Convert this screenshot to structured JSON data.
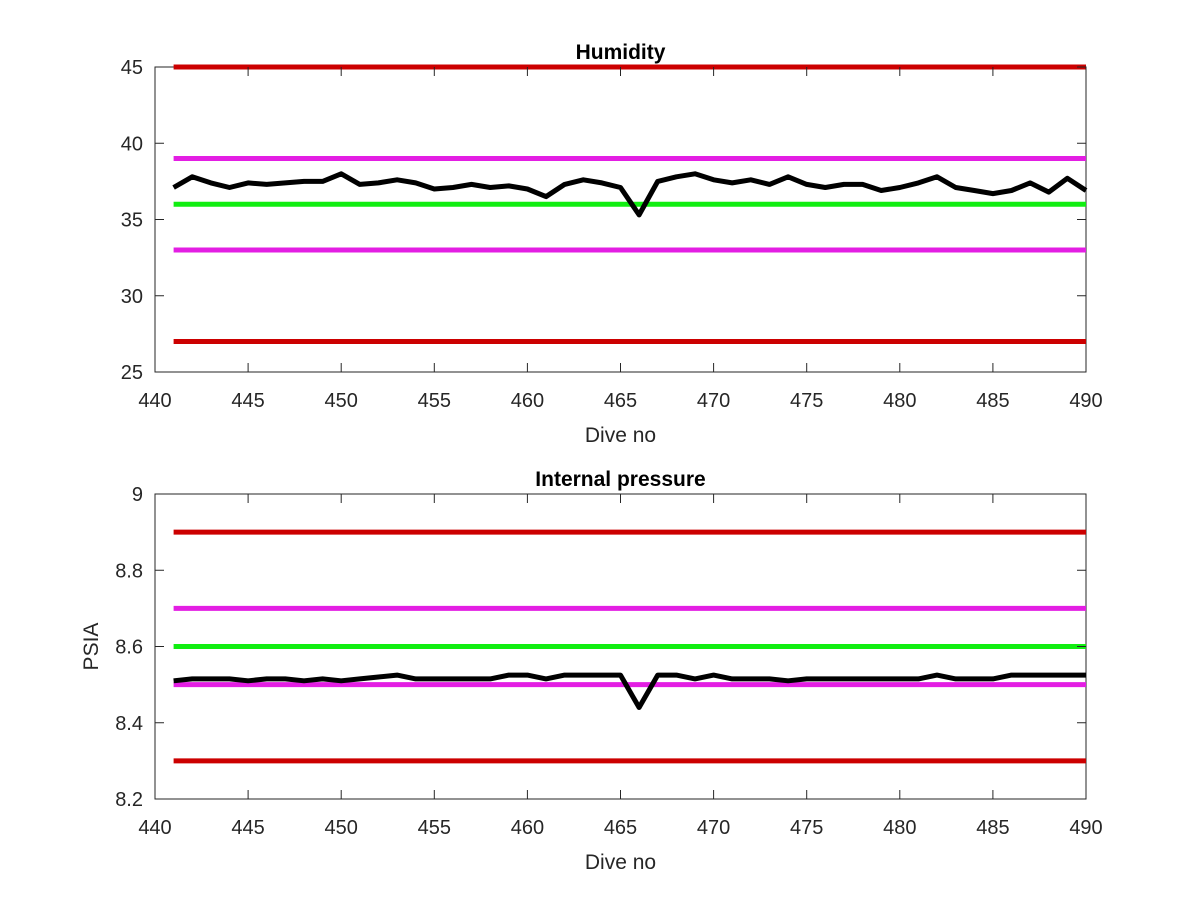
{
  "colors": {
    "critical": "#cc0000",
    "warning": "#e31ee3",
    "nominal": "#11ee11",
    "data": "#000000",
    "axis": "#262626"
  },
  "chart_data": [
    {
      "type": "line",
      "title": "Humidity",
      "xlabel": "Dive no",
      "ylabel": "",
      "xlim": [
        440,
        490
      ],
      "ylim": [
        25,
        45
      ],
      "xticks": [
        440,
        445,
        450,
        455,
        460,
        465,
        470,
        475,
        480,
        485,
        490
      ],
      "yticks": [
        25,
        30,
        35,
        40,
        45
      ],
      "ytick_labels": [
        "25",
        "30",
        "35",
        "40",
        "45"
      ],
      "grid": false,
      "series": [
        {
          "role": "data",
          "x": [
            441,
            442,
            443,
            444,
            445,
            446,
            447,
            448,
            449,
            450,
            451,
            452,
            453,
            454,
            455,
            456,
            457,
            458,
            459,
            460,
            461,
            462,
            463,
            464,
            465,
            466,
            467,
            468,
            469,
            470,
            471,
            472,
            473,
            474,
            475,
            476,
            477,
            478,
            479,
            480,
            481,
            482,
            483,
            484,
            485,
            486,
            487,
            488,
            489,
            490
          ],
          "y": [
            37.1,
            37.8,
            37.4,
            37.1,
            37.4,
            37.3,
            37.4,
            37.5,
            37.5,
            38.0,
            37.3,
            37.4,
            37.6,
            37.4,
            37.0,
            37.1,
            37.3,
            37.1,
            37.2,
            37.0,
            36.5,
            37.3,
            37.6,
            37.4,
            37.1,
            35.3,
            37.5,
            37.8,
            38.0,
            37.6,
            37.4,
            37.6,
            37.3,
            37.8,
            37.3,
            37.1,
            37.3,
            37.3,
            36.9,
            37.1,
            37.4,
            37.8,
            37.1,
            36.9,
            36.7,
            36.9,
            37.4,
            36.8,
            37.7,
            36.9
          ]
        },
        {
          "role": "critical",
          "x": [
            441,
            490
          ],
          "y": [
            45,
            45
          ]
        },
        {
          "role": "warning",
          "x": [
            441,
            490
          ],
          "y": [
            39,
            39
          ]
        },
        {
          "role": "nominal",
          "x": [
            441,
            490
          ],
          "y": [
            36,
            36
          ]
        },
        {
          "role": "warning",
          "x": [
            441,
            490
          ],
          "y": [
            33,
            33
          ]
        },
        {
          "role": "critical",
          "x": [
            441,
            490
          ],
          "y": [
            27,
            27
          ]
        }
      ]
    },
    {
      "type": "line",
      "title": "Internal pressure",
      "xlabel": "Dive no",
      "ylabel": "PSIA",
      "xlim": [
        440,
        490
      ],
      "ylim": [
        8.2,
        9
      ],
      "xticks": [
        440,
        445,
        450,
        455,
        460,
        465,
        470,
        475,
        480,
        485,
        490
      ],
      "yticks": [
        8.2,
        8.4,
        8.6,
        8.8,
        9
      ],
      "ytick_labels": [
        "8.2",
        "8.4",
        "8.6",
        "8.8",
        "9"
      ],
      "grid": false,
      "series": [
        {
          "role": "data",
          "x": [
            441,
            442,
            443,
            444,
            445,
            446,
            447,
            448,
            449,
            450,
            451,
            452,
            453,
            454,
            455,
            456,
            457,
            458,
            459,
            460,
            461,
            462,
            463,
            464,
            465,
            466,
            467,
            468,
            469,
            470,
            471,
            472,
            473,
            474,
            475,
            476,
            477,
            478,
            479,
            480,
            481,
            482,
            483,
            484,
            485,
            486,
            487,
            488,
            489,
            490
          ],
          "y": [
            8.51,
            8.515,
            8.515,
            8.515,
            8.51,
            8.515,
            8.515,
            8.51,
            8.515,
            8.51,
            8.515,
            8.52,
            8.525,
            8.515,
            8.515,
            8.515,
            8.515,
            8.515,
            8.525,
            8.525,
            8.515,
            8.525,
            8.525,
            8.525,
            8.525,
            8.44,
            8.525,
            8.525,
            8.515,
            8.525,
            8.515,
            8.515,
            8.515,
            8.51,
            8.515,
            8.515,
            8.515,
            8.515,
            8.515,
            8.515,
            8.515,
            8.525,
            8.515,
            8.515,
            8.515,
            8.525,
            8.525,
            8.525,
            8.525,
            8.525
          ]
        },
        {
          "role": "critical",
          "x": [
            441,
            490
          ],
          "y": [
            8.9,
            8.9
          ]
        },
        {
          "role": "warning",
          "x": [
            441,
            490
          ],
          "y": [
            8.7,
            8.7
          ]
        },
        {
          "role": "nominal",
          "x": [
            441,
            490
          ],
          "y": [
            8.6,
            8.6
          ]
        },
        {
          "role": "warning",
          "x": [
            441,
            490
          ],
          "y": [
            8.5,
            8.5
          ]
        },
        {
          "role": "critical",
          "x": [
            441,
            490
          ],
          "y": [
            8.3,
            8.3
          ]
        }
      ]
    }
  ]
}
